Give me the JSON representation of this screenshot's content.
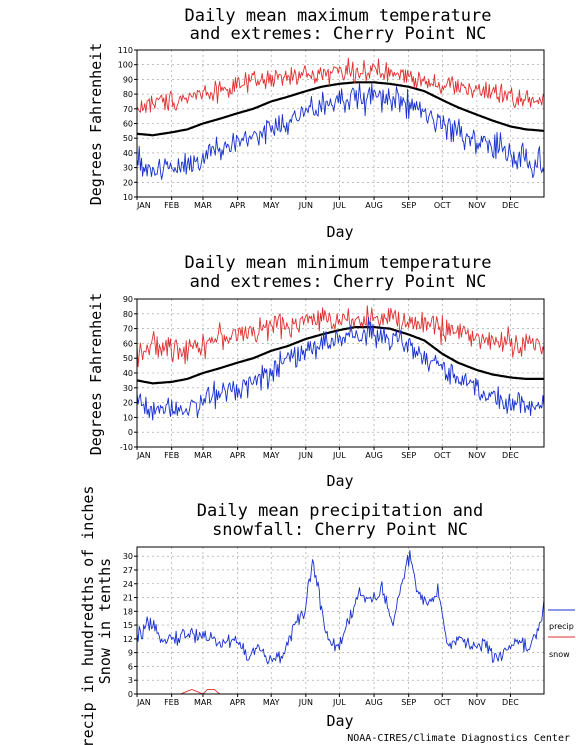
{
  "credit": "NOAA-CIRES/Climate Diagnostics Center",
  "colors": {
    "mean": "#000000",
    "max_extreme": "#e03030",
    "min_extreme": "#1830d0",
    "precip": "#1830d0",
    "snow": "#e03030",
    "grid": "#999999"
  },
  "chart_data": [
    {
      "type": "line",
      "title_line1": "Daily mean maximum temperature",
      "title_line2": "and extremes: Cherry Point NC",
      "xlabel": "Day",
      "ylabel": "Degrees Fahrenheit",
      "ylim": [
        10,
        110
      ],
      "ytick_step": 10,
      "xlim": [
        1,
        365
      ],
      "grid": true,
      "month_ticks": [
        "JAN",
        "FEB",
        "MAR",
        "APR",
        "MAY",
        "JUN",
        "JUL",
        "AUG",
        "SEP",
        "OCT",
        "NOV",
        "DEC"
      ],
      "series": [
        {
          "key": "mean",
          "role": "mean",
          "x": [
            1,
            15,
            32,
            46,
            60,
            74,
            91,
            105,
            121,
            135,
            152,
            166,
            182,
            196,
            213,
            227,
            244,
            258,
            274,
            288,
            305,
            319,
            335,
            349,
            365
          ],
          "values": [
            53,
            52,
            54,
            56,
            60,
            63,
            67,
            70,
            75,
            78,
            82,
            85,
            87,
            88,
            88,
            87,
            85,
            82,
            76,
            71,
            66,
            62,
            58,
            56,
            55
          ]
        },
        {
          "key": "max_extreme",
          "role": "max",
          "amp": 5,
          "x": [
            1,
            15,
            32,
            46,
            60,
            74,
            91,
            105,
            121,
            135,
            152,
            166,
            182,
            196,
            213,
            227,
            244,
            258,
            274,
            288,
            305,
            319,
            335,
            349,
            365
          ],
          "values": [
            70,
            74,
            76,
            78,
            81,
            83,
            85,
            88,
            90,
            91,
            93,
            94,
            96,
            96,
            95,
            94,
            92,
            90,
            87,
            85,
            83,
            80,
            78,
            76,
            74
          ]
        },
        {
          "key": "min_extreme",
          "role": "min",
          "amp": 7,
          "x": [
            1,
            15,
            32,
            46,
            60,
            74,
            91,
            105,
            121,
            135,
            152,
            166,
            182,
            196,
            213,
            227,
            244,
            258,
            274,
            288,
            305,
            319,
            335,
            349,
            365
          ],
          "values": [
            33,
            28,
            31,
            33,
            38,
            42,
            47,
            52,
            56,
            60,
            67,
            72,
            75,
            78,
            79,
            77,
            72,
            67,
            59,
            54,
            48,
            44,
            40,
            35,
            33
          ]
        }
      ]
    },
    {
      "type": "line",
      "title_line1": "Daily mean minimum temperature",
      "title_line2": "and extremes: Cherry Point NC",
      "xlabel": "Day",
      "ylabel": "Degrees Fahrenheit",
      "ylim": [
        -10,
        90
      ],
      "ytick_step": 10,
      "xlim": [
        1,
        365
      ],
      "grid": true,
      "month_ticks": [
        "JAN",
        "FEB",
        "MAR",
        "APR",
        "MAY",
        "JUN",
        "JUL",
        "AUG",
        "SEP",
        "OCT",
        "NOV",
        "DEC"
      ],
      "series": [
        {
          "key": "mean",
          "role": "mean",
          "x": [
            1,
            15,
            32,
            46,
            60,
            74,
            91,
            105,
            121,
            135,
            152,
            166,
            182,
            196,
            213,
            227,
            244,
            258,
            274,
            288,
            305,
            319,
            335,
            349,
            365
          ],
          "values": [
            35,
            33,
            34,
            36,
            40,
            43,
            47,
            50,
            55,
            58,
            63,
            66,
            69,
            71,
            71,
            70,
            66,
            62,
            53,
            47,
            42,
            39,
            37,
            36,
            36
          ]
        },
        {
          "key": "max_extreme",
          "role": "max",
          "amp": 6,
          "x": [
            1,
            15,
            32,
            46,
            60,
            74,
            91,
            105,
            121,
            135,
            152,
            166,
            182,
            196,
            213,
            227,
            244,
            258,
            274,
            288,
            305,
            319,
            335,
            349,
            365
          ],
          "values": [
            55,
            58,
            56,
            58,
            60,
            64,
            66,
            68,
            71,
            73,
            75,
            76,
            77,
            77,
            77,
            76,
            74,
            73,
            71,
            68,
            64,
            62,
            60,
            60,
            58
          ]
        },
        {
          "key": "min_extreme",
          "role": "min",
          "amp": 6,
          "x": [
            1,
            15,
            32,
            46,
            60,
            74,
            91,
            105,
            121,
            135,
            152,
            166,
            182,
            196,
            213,
            227,
            244,
            258,
            274,
            288,
            305,
            319,
            335,
            349,
            365
          ],
          "values": [
            22,
            16,
            17,
            18,
            20,
            27,
            31,
            35,
            42,
            47,
            55,
            60,
            63,
            66,
            67,
            63,
            57,
            52,
            43,
            35,
            30,
            24,
            21,
            18,
            17
          ]
        }
      ]
    },
    {
      "type": "line",
      "title_line1": "Daily mean precipitation and",
      "title_line2": "snowfall: Cherry Point NC",
      "xlabel": "Day",
      "ylabel_line1": "Precip in hundredths of inches",
      "ylabel_line2": "Snow in tenths",
      "ylim": [
        0,
        32
      ],
      "yticks": [
        0,
        3,
        6,
        9,
        12,
        15,
        18,
        21,
        24,
        27,
        30
      ],
      "xlim": [
        1,
        365
      ],
      "grid": true,
      "month_ticks": [
        "JAN",
        "FEB",
        "MAR",
        "APR",
        "MAY",
        "JUN",
        "JUL",
        "AUG",
        "SEP",
        "OCT",
        "NOV",
        "DEC"
      ],
      "legend": {
        "placement": "right",
        "entries": [
          {
            "key": "precip",
            "label": "precip"
          },
          {
            "key": "snow",
            "label": "snow"
          }
        ]
      },
      "series": [
        {
          "key": "precip",
          "role": "precip",
          "amp": 1.2,
          "x": [
            1,
            10,
            20,
            32,
            45,
            60,
            75,
            90,
            100,
            110,
            120,
            130,
            140,
            150,
            158,
            165,
            172,
            180,
            190,
            200,
            210,
            220,
            230,
            238,
            245,
            252,
            260,
            270,
            280,
            290,
            300,
            310,
            320,
            330,
            340,
            350,
            360,
            365
          ],
          "values": [
            12,
            15,
            13,
            12,
            13,
            13,
            11,
            12,
            8,
            10,
            7,
            8,
            14,
            17,
            29,
            20,
            12,
            10,
            16,
            22,
            20,
            23,
            15,
            25,
            30,
            22,
            19,
            22,
            10,
            13,
            10,
            11,
            8,
            9,
            12,
            10,
            14,
            19
          ]
        },
        {
          "key": "snow",
          "role": "snow",
          "amp": 0,
          "x": [
            1,
            40,
            45,
            50,
            55,
            60,
            64,
            70,
            75,
            80,
            365
          ],
          "values": [
            0,
            0,
            0.5,
            1,
            0.5,
            0,
            1,
            1,
            0,
            0,
            0
          ]
        }
      ]
    }
  ]
}
